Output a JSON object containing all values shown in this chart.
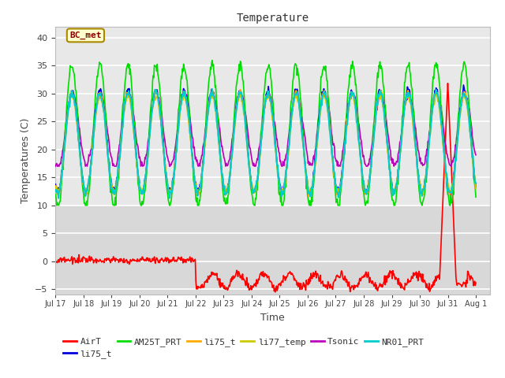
{
  "title": "Temperature",
  "xlabel": "Time",
  "ylabel": "Temperatures (C)",
  "ylim": [
    -6,
    42
  ],
  "xlim_start": 0,
  "xlim_end": 15.5,
  "background_color": "#ffffff",
  "plot_bg_upper": "#e8e8e8",
  "plot_bg_lower": "#d8d8d8",
  "annotation_text": "BC_met",
  "annotation_color": "#880000",
  "annotation_bg": "#ffffcc",
  "annotation_border": "#aa8800",
  "series": {
    "AirT": {
      "color": "#ff0000",
      "lw": 1.2,
      "zorder": 2
    },
    "li75_t_b": {
      "color": "#0000dd",
      "lw": 1.2,
      "zorder": 5
    },
    "AM25T_PRT": {
      "color": "#00dd00",
      "lw": 1.2,
      "zorder": 4
    },
    "li75_t_o": {
      "color": "#ffaa00",
      "lw": 1.2,
      "zorder": 6
    },
    "li77_temp": {
      "color": "#cccc00",
      "lw": 1.2,
      "zorder": 7
    },
    "Tsonic": {
      "color": "#bb00bb",
      "lw": 1.2,
      "zorder": 3
    },
    "NR01_PRT": {
      "color": "#00cccc",
      "lw": 1.5,
      "zorder": 8
    }
  },
  "x_ticks": [
    0,
    1,
    2,
    3,
    4,
    5,
    6,
    7,
    8,
    9,
    10,
    11,
    12,
    13,
    14,
    15
  ],
  "x_tick_labels": [
    "Jul 17",
    "Jul 18",
    "Jul 19",
    "Jul 20",
    "Jul 21",
    "Jul 22",
    "Jul 23",
    "Jul 24",
    "Jul 25",
    "Jul 26",
    "Jul 27",
    "Jul 28",
    "Jul 29",
    "Jul 30",
    "Jul 31",
    "Aug 1"
  ],
  "y_ticks": [
    -5,
    0,
    5,
    10,
    15,
    20,
    25,
    30,
    35,
    40
  ],
  "legend_entries": [
    {
      "label": "AirT",
      "color": "#ff0000"
    },
    {
      "label": "li75_t",
      "color": "#0000dd"
    },
    {
      "label": "AM25T_PRT",
      "color": "#00dd00"
    },
    {
      "label": "li75_t",
      "color": "#ffaa00"
    },
    {
      "label": "li77_temp",
      "color": "#cccc00"
    },
    {
      "label": "Tsonic",
      "color": "#bb00bb"
    },
    {
      "label": "NR01_PRT",
      "color": "#00cccc"
    }
  ]
}
